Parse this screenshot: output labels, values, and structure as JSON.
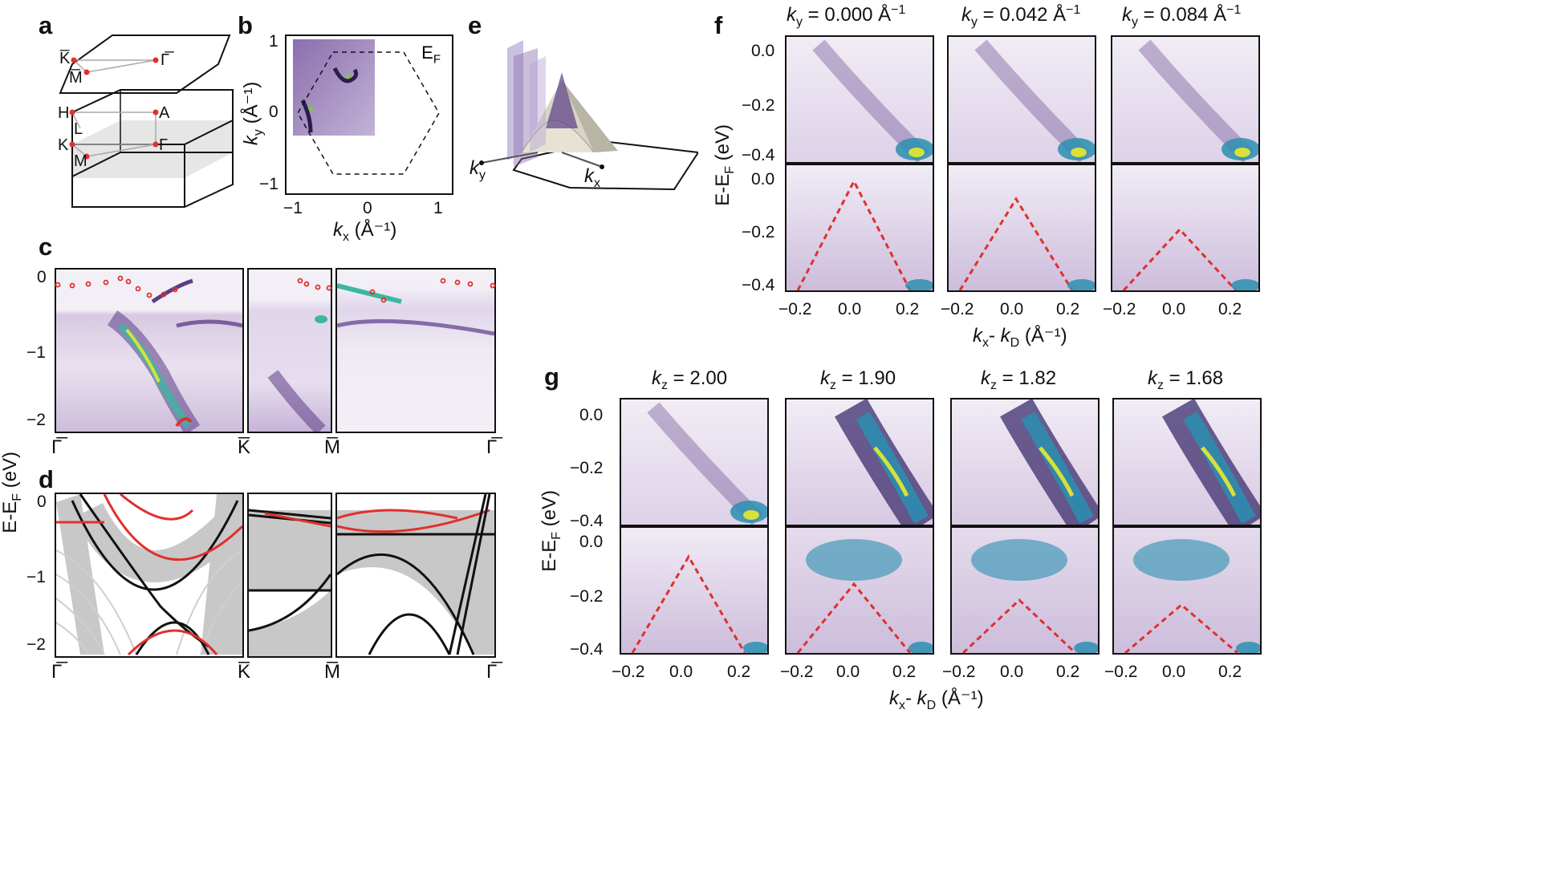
{
  "panels": {
    "a": {
      "letter": "a",
      "top_labels": [
        "K̅",
        "M̅",
        "Γ̅"
      ],
      "bottom_labels": [
        "H",
        "L",
        "K",
        "M",
        "A",
        "Γ"
      ]
    },
    "b": {
      "letter": "b",
      "ef_label": "E",
      "ef_sub": "F",
      "xlabel": "k",
      "xlabel_sub": "x",
      "xlabel_unit": " (Å⁻¹)",
      "ylabel": "k",
      "ylabel_sub": "y",
      "ylabel_unit": " (Å⁻¹)",
      "xticks": [
        "−1",
        "0",
        "1"
      ],
      "yticks": [
        "1",
        "0",
        "−1"
      ]
    },
    "c": {
      "letter": "c",
      "yticks": [
        "0",
        "−1",
        "−2"
      ],
      "kpoints": [
        "Γ̅",
        "K̅",
        "M̅",
        "Γ̅"
      ]
    },
    "d": {
      "letter": "d",
      "yticks": [
        "0",
        "−1",
        "−2"
      ],
      "kpoints": [
        "Γ̅",
        "K̅",
        "M̅",
        "Γ̅"
      ]
    },
    "cd_ylabel": "E-E",
    "cd_ylabel_sub": "F",
    "cd_ylabel_unit": " (eV)",
    "e": {
      "letter": "e",
      "ky": "k",
      "ky_sub": "y",
      "kx": "k",
      "kx_sub": "x"
    },
    "f": {
      "letter": "f",
      "headers": [
        {
          "var": "k",
          "sub": "y",
          "rest": " = 0.000 Å",
          "sup": "−1"
        },
        {
          "var": "k",
          "sub": "y",
          "rest": " = 0.042 Å",
          "sup": "−1"
        },
        {
          "var": "k",
          "sub": "y",
          "rest": " = 0.084 Å",
          "sup": "−1"
        }
      ],
      "yticks_top": [
        "0.0",
        "−0.2",
        "−0.4"
      ],
      "yticks_bottom": [
        "0.0",
        "−0.2",
        "−0.4"
      ],
      "xticks": [
        "−0.2",
        "0.0",
        "0.2"
      ],
      "ylabel": "E-E",
      "ylabel_sub": "F",
      "ylabel_unit": " (eV)",
      "xlabel_a": "k",
      "xlabel_a_sub": "x",
      "xlabel_mid": "- ",
      "xlabel_b": "k",
      "xlabel_b_sub": "D",
      "xlabel_unit": " (Å⁻¹)"
    },
    "g": {
      "letter": "g",
      "headers": [
        {
          "var": "k",
          "sub": "z",
          "rest": " = 2.00"
        },
        {
          "var": "k",
          "sub": "z",
          "rest": " = 1.90"
        },
        {
          "var": "k",
          "sub": "z",
          "rest": " = 1.82"
        },
        {
          "var": "k",
          "sub": "z",
          "rest": " = 1.68"
        }
      ],
      "yticks_top": [
        "0.0",
        "−0.2",
        "−0.4"
      ],
      "yticks_bottom": [
        "0.0",
        "−0.2",
        "−0.4"
      ],
      "xticks": [
        "−0.2",
        "0.0",
        "0.2"
      ],
      "ylabel": "E-E",
      "ylabel_sub": "F",
      "ylabel_unit": " (eV)",
      "xlabel_a": "k",
      "xlabel_a_sub": "x",
      "xlabel_mid": "- ",
      "xlabel_b": "k",
      "xlabel_b_sub": "D",
      "xlabel_unit": " (Å⁻¹)"
    }
  },
  "colors": {
    "purple": "#5b3d86",
    "light_purple": "#e9e1ef",
    "red": "#e0302c",
    "gray_band": "#c8c8c8"
  }
}
